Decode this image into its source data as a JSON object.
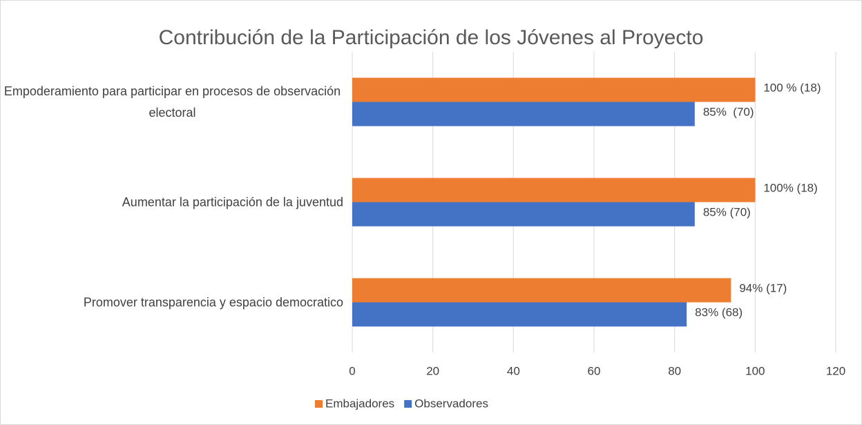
{
  "chart_data": {
    "type": "barh",
    "title": "Contribución de la Participación de los Jóvenes al Proyecto",
    "categories": [
      "Empoderamiento para participar en procesos de observación electoral",
      "Aumentar la participación de la juventud",
      "Promover transparencia y espacio democratico"
    ],
    "series": [
      {
        "name": "Embajadores",
        "color": "#ed7d31",
        "values": [
          100,
          100,
          94
        ],
        "value_labels": [
          "100 % (18)",
          "100% (18)",
          "94% (17)"
        ]
      },
      {
        "name": "Observadores",
        "color": "#4472c4",
        "values": [
          85,
          85,
          83
        ],
        "value_labels": [
          "85%  (70)",
          "85% (70)",
          "83% (68)"
        ]
      }
    ],
    "xlim": [
      0,
      120
    ],
    "xticks": [
      0,
      20,
      40,
      60,
      80,
      100,
      120
    ],
    "grid": true,
    "legend": "bottom"
  }
}
